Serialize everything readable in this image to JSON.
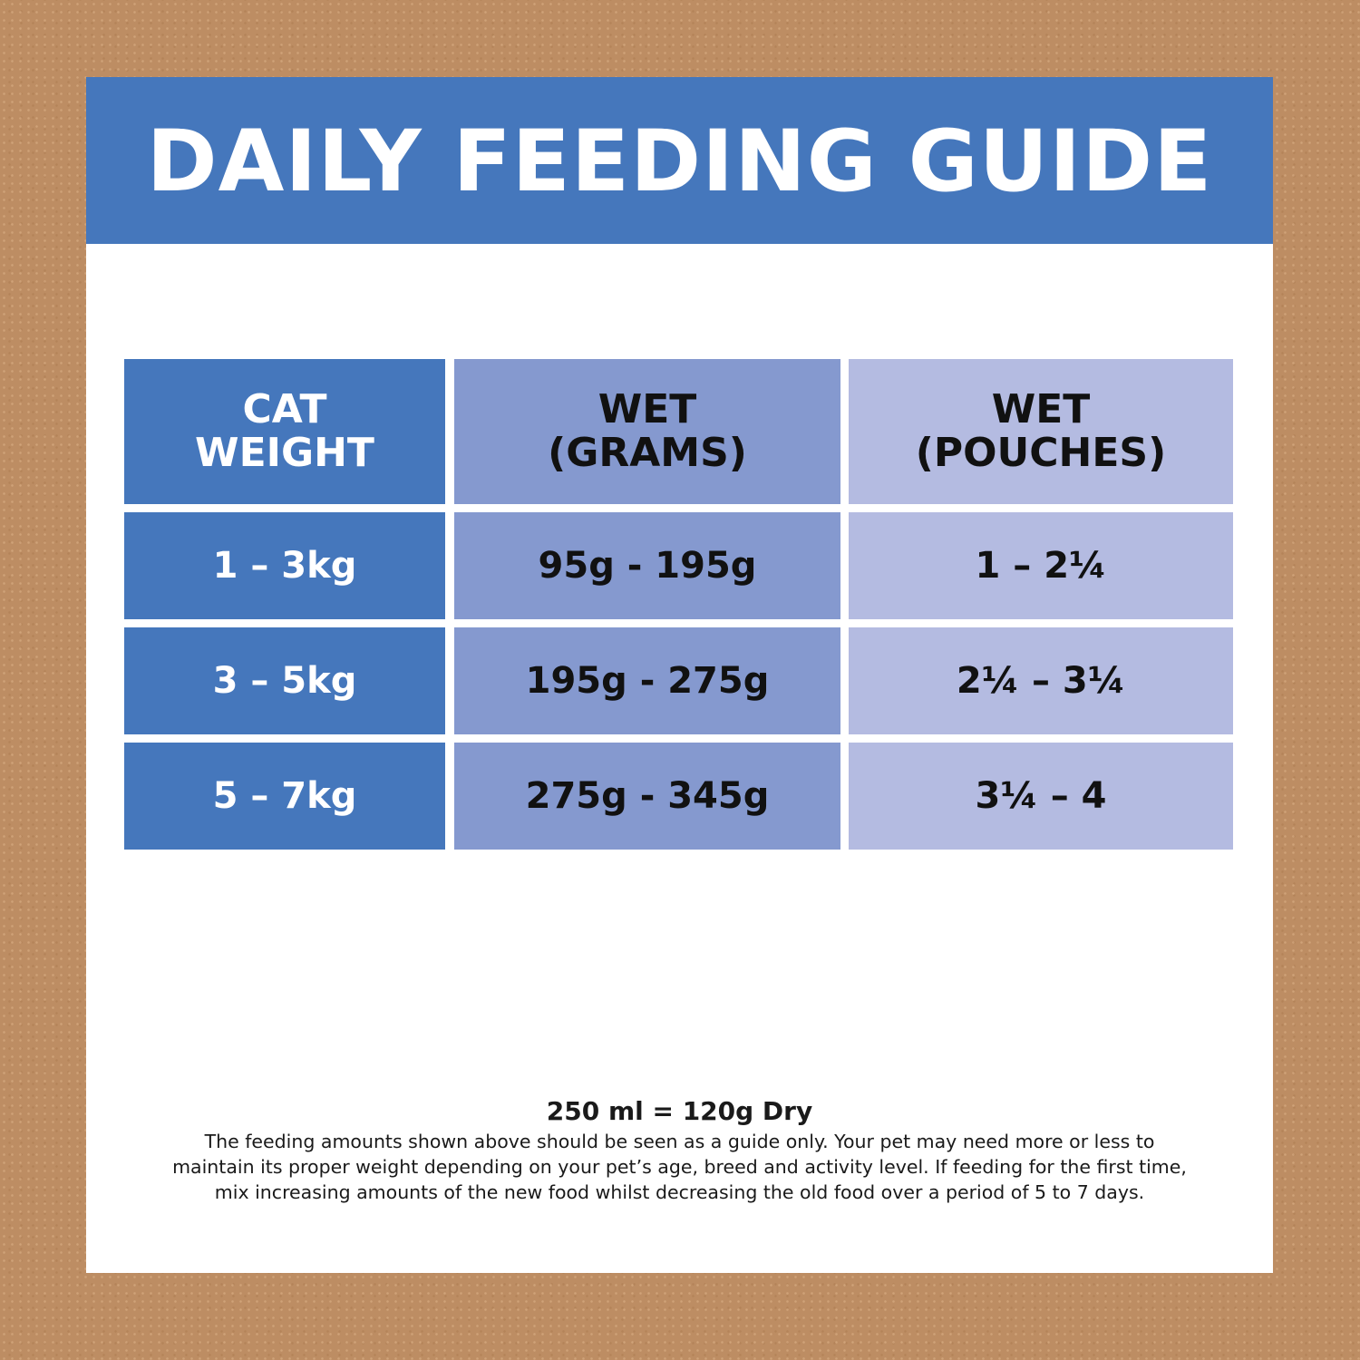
{
  "title": "DAILY FEEDING GUIDE",
  "colors": {
    "background": "#bd8d63",
    "header_blue": "#4577bc",
    "col_weight": "#4577bc",
    "col_grams": "#8599cf",
    "col_pouches": "#b4bbe1"
  },
  "table": {
    "headers": [
      "CAT\nWEIGHT",
      "WET\n(GRAMS)",
      "WET\n(POUCHES)"
    ],
    "header_lines": [
      [
        "CAT",
        "WEIGHT"
      ],
      [
        "WET",
        "(GRAMS)"
      ],
      [
        "WET",
        "(POUCHES)"
      ]
    ],
    "rows": [
      [
        "1 – 3kg",
        "95g - 195g",
        "1 – 2¼"
      ],
      [
        "3 – 5kg",
        "195g - 275g",
        "2¼ – 3¼"
      ],
      [
        "5 – 7kg",
        "275g - 345g",
        "3¼ – 4"
      ]
    ]
  },
  "footer": {
    "conversion": "250 ml = 120g Dry",
    "note_lines": [
      "The feeding amounts shown above should be seen as a guide only. Your pet may need more or less to",
      "maintain its proper weight depending on your pet’s age, breed and activity level. If feeding for the first time,",
      "mix increasing amounts of the new food whilst decreasing the old food over a period of 5 to 7 days."
    ]
  }
}
